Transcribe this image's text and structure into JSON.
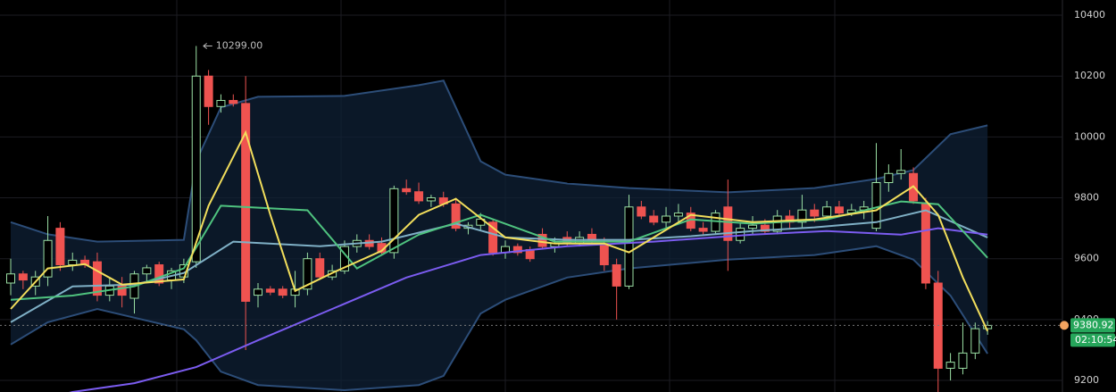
{
  "chart_data": {
    "type": "candlestick",
    "open": [
      9520,
      9550,
      9510,
      9540,
      9700,
      9580,
      9595,
      9590,
      9480,
      9510,
      9470,
      9550,
      9580,
      9530,
      9540,
      9590,
      10200,
      10100,
      10120,
      10110,
      9480,
      9500,
      9500,
      9480,
      9500,
      9600,
      9540,
      9560,
      9640,
      9660,
      9650,
      9620,
      9830,
      9820,
      9790,
      9800,
      9780,
      9700,
      9710,
      9720,
      9620,
      9640,
      9630,
      9680,
      9640,
      9670,
      9650,
      9680,
      9650,
      9580,
      9510,
      9770,
      9740,
      9720,
      9740,
      9750,
      9700,
      9690,
      9770,
      9660,
      9700,
      9710,
      9690,
      9740,
      9720,
      9760,
      9740,
      9770,
      9750,
      9760,
      9700,
      9850,
      9880,
      9880,
      9780,
      9520,
      9240,
      9240,
      9290,
      9370
    ],
    "high": [
      9600,
      9560,
      9560,
      9740,
      9720,
      9620,
      9610,
      9620,
      9540,
      9540,
      9560,
      9580,
      9590,
      9570,
      9600,
      10299,
      10220,
      10140,
      10140,
      10200,
      9520,
      9510,
      9510,
      9560,
      9620,
      9620,
      9580,
      9660,
      9680,
      9680,
      9670,
      9840,
      9860,
      9850,
      9810,
      9820,
      9800,
      9720,
      9750,
      9730,
      9660,
      9650,
      9640,
      9700,
      9670,
      9690,
      9690,
      9700,
      9670,
      9600,
      9810,
      9790,
      9760,
      9770,
      9780,
      9770,
      9720,
      9760,
      9860,
      9720,
      9740,
      9730,
      9760,
      9760,
      9810,
      9780,
      9790,
      9790,
      9780,
      9790,
      9980,
      9910,
      9960,
      9900,
      9800,
      9560,
      9290,
      9390,
      9390,
      9395
    ],
    "low": [
      9480,
      9500,
      9480,
      9510,
      9560,
      9560,
      9570,
      9460,
      9460,
      9440,
      9420,
      9520,
      9510,
      9500,
      9520,
      9570,
      10040,
      10080,
      10100,
      9300,
      9440,
      9480,
      9470,
      9440,
      9480,
      9530,
      9530,
      9550,
      9620,
      9630,
      9610,
      9600,
      9810,
      9780,
      9770,
      9770,
      9690,
      9680,
      9690,
      9610,
      9600,
      9610,
      9590,
      9630,
      9620,
      9640,
      9640,
      9650,
      9560,
      9400,
      9500,
      9730,
      9710,
      9700,
      9720,
      9690,
      9680,
      9680,
      9560,
      9650,
      9680,
      9680,
      9680,
      9700,
      9700,
      9720,
      9730,
      9740,
      9740,
      9730,
      9690,
      9820,
      9860,
      9780,
      9500,
      9160,
      9200,
      9220,
      9270,
      9350
    ],
    "close": [
      9550,
      9530,
      9540,
      9660,
      9580,
      9595,
      9580,
      9480,
      9510,
      9480,
      9550,
      9570,
      9520,
      9560,
      9580,
      10200,
      10100,
      10120,
      10110,
      9460,
      9500,
      9490,
      9480,
      9500,
      9600,
      9540,
      9560,
      9640,
      9660,
      9640,
      9620,
      9830,
      9820,
      9790,
      9800,
      9780,
      9700,
      9710,
      9730,
      9620,
      9640,
      9620,
      9600,
      9640,
      9650,
      9650,
      9670,
      9660,
      9580,
      9510,
      9770,
      9740,
      9720,
      9740,
      9750,
      9700,
      9690,
      9750,
      9660,
      9700,
      9710,
      9690,
      9740,
      9720,
      9760,
      9740,
      9770,
      9750,
      9760,
      9770,
      9850,
      9880,
      9890,
      9790,
      9520,
      9240,
      9260,
      9290,
      9370,
      9380.92
    ],
    "up_color": "#9be0a4",
    "down_color": "#ef5350",
    "ylim": [
      9162,
      10450
    ],
    "yticks": [
      9200,
      9400,
      9600,
      9800,
      10000,
      10200,
      10400
    ],
    "grid": true,
    "high_marker": {
      "index": 15,
      "price": {
        "value": 10299,
        "label": "10299.00"
      }
    },
    "bands": {
      "color": "#2c4d78",
      "fill": "#0f2036",
      "x": [
        0,
        3,
        7,
        14,
        15,
        17,
        20,
        27,
        33,
        35,
        38,
        40,
        45,
        50,
        58,
        65,
        70,
        73,
        76,
        79
      ],
      "upper": [
        9720,
        9680,
        9656,
        9662,
        9920,
        10097,
        10132,
        10135,
        10170,
        10185,
        9920,
        9876,
        9847,
        9832,
        9818,
        9832,
        9862,
        9891,
        10009,
        10038
      ],
      "lower": [
        9318,
        9391,
        9435,
        9368,
        9332,
        9229,
        9185,
        9168,
        9185,
        9215,
        9420,
        9465,
        9538,
        9568,
        9597,
        9612,
        9641,
        9597,
        9479,
        9288
      ]
    },
    "lines": [
      {
        "color": "#7fb0c6",
        "x": [
          0,
          5,
          10,
          14,
          18,
          25,
          30,
          36,
          40,
          45,
          50,
          55,
          60,
          65,
          70,
          74,
          79
        ],
        "values": [
          9391,
          9509,
          9515,
          9553,
          9656,
          9641,
          9656,
          9715,
          9670,
          9662,
          9662,
          9674,
          9691,
          9703,
          9720,
          9759,
          9670
        ]
      },
      {
        "color": "#7b5cf0",
        "x": [
          0,
          5,
          10,
          15,
          20,
          26,
          32,
          38,
          45,
          52,
          60,
          66,
          72,
          75,
          79
        ],
        "values": [
          9110,
          9162,
          9191,
          9244,
          9332,
          9435,
          9538,
          9612,
          9641,
          9656,
          9679,
          9691,
          9679,
          9700,
          9679
        ]
      },
      {
        "color": "#4fc37f",
        "x": [
          0,
          5,
          10,
          14,
          17,
          24,
          28,
          33,
          38,
          44,
          50,
          55,
          60,
          66,
          72,
          75,
          79
        ],
        "values": [
          9465,
          9479,
          9509,
          9568,
          9774,
          9759,
          9568,
          9679,
          9744,
          9656,
          9656,
          9729,
          9715,
          9729,
          9788,
          9779,
          9603
        ]
      },
      {
        "color": "#f2de5c",
        "x": [
          0,
          3,
          6,
          9,
          14,
          16,
          19,
          21,
          23,
          26,
          30,
          33,
          36,
          40,
          44,
          48,
          50,
          55,
          60,
          65,
          70,
          73,
          75,
          77,
          79
        ],
        "values": [
          9435,
          9568,
          9582,
          9515,
          9532,
          9774,
          10015,
          9744,
          9494,
          9553,
          9626,
          9744,
          9797,
          9670,
          9650,
          9650,
          9621,
          9744,
          9720,
          9729,
          9759,
          9838,
          9744,
          9538,
          9362
        ]
      }
    ],
    "last_price": 9380.92,
    "last_color": "#26a65b",
    "countdown": "02:10:54"
  }
}
